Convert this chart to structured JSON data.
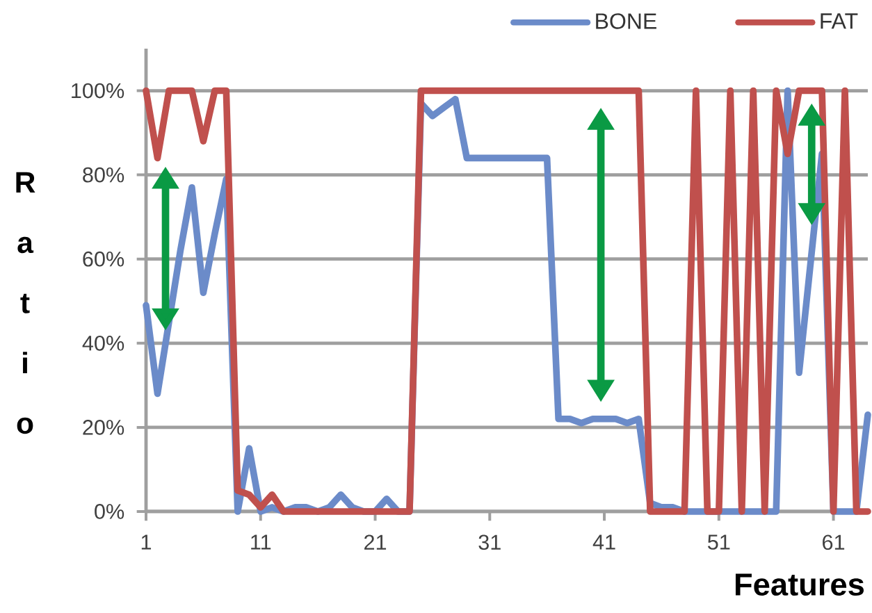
{
  "chart_data": {
    "type": "line",
    "xlabel": "Features",
    "ylabel": "Ratio",
    "x": [
      1,
      2,
      3,
      4,
      5,
      6,
      7,
      8,
      9,
      10,
      11,
      12,
      13,
      14,
      15,
      16,
      17,
      18,
      19,
      20,
      21,
      22,
      23,
      24,
      25,
      26,
      27,
      28,
      29,
      30,
      31,
      32,
      33,
      34,
      35,
      36,
      37,
      38,
      39,
      40,
      41,
      42,
      43,
      44,
      45,
      46,
      47,
      48,
      49,
      50,
      51,
      52,
      53,
      54,
      55,
      56,
      57,
      58,
      59,
      60,
      61,
      62,
      63,
      64
    ],
    "series": [
      {
        "name": "BONE",
        "color": "#6b8bc9",
        "values": [
          49,
          28,
          45,
          62,
          77,
          52,
          66,
          79,
          0,
          15,
          0,
          1,
          0,
          1,
          1,
          0,
          1,
          4,
          1,
          0,
          0,
          3,
          0,
          0,
          97,
          94,
          96,
          98,
          84,
          84,
          84,
          84,
          84,
          84,
          84,
          84,
          22,
          22,
          21,
          22,
          22,
          22,
          21,
          22,
          2,
          1,
          1,
          0,
          0,
          0,
          0,
          0,
          0,
          0,
          0,
          0,
          100,
          33,
          59,
          85,
          0,
          0,
          0,
          23
        ]
      },
      {
        "name": "FAT",
        "color": "#c0504d",
        "values": [
          100,
          84,
          100,
          100,
          100,
          88,
          100,
          100,
          5,
          4,
          1,
          4,
          0,
          0,
          0,
          0,
          0,
          0,
          0,
          0,
          0,
          0,
          0,
          0,
          100,
          100,
          100,
          100,
          100,
          100,
          100,
          100,
          100,
          100,
          100,
          100,
          100,
          100,
          100,
          100,
          100,
          100,
          100,
          100,
          0,
          0,
          0,
          0,
          100,
          0,
          0,
          100,
          0,
          100,
          0,
          100,
          85,
          100,
          100,
          100,
          0,
          100,
          0,
          0
        ]
      }
    ],
    "xlim": [
      1,
      64
    ],
    "ylim": [
      0,
      110
    ],
    "xticks": [
      1,
      11,
      21,
      31,
      41,
      51,
      61
    ],
    "yticks": [
      {
        "value": 0,
        "label": "0%"
      },
      {
        "value": 20,
        "label": "20%"
      },
      {
        "value": 40,
        "label": "40%"
      },
      {
        "value": 60,
        "label": "60%"
      },
      {
        "value": 80,
        "label": "80%"
      },
      {
        "value": 100,
        "label": "100%"
      }
    ],
    "grid": "y",
    "legend": "top right",
    "marker": "none",
    "line_style": "solid"
  }
}
